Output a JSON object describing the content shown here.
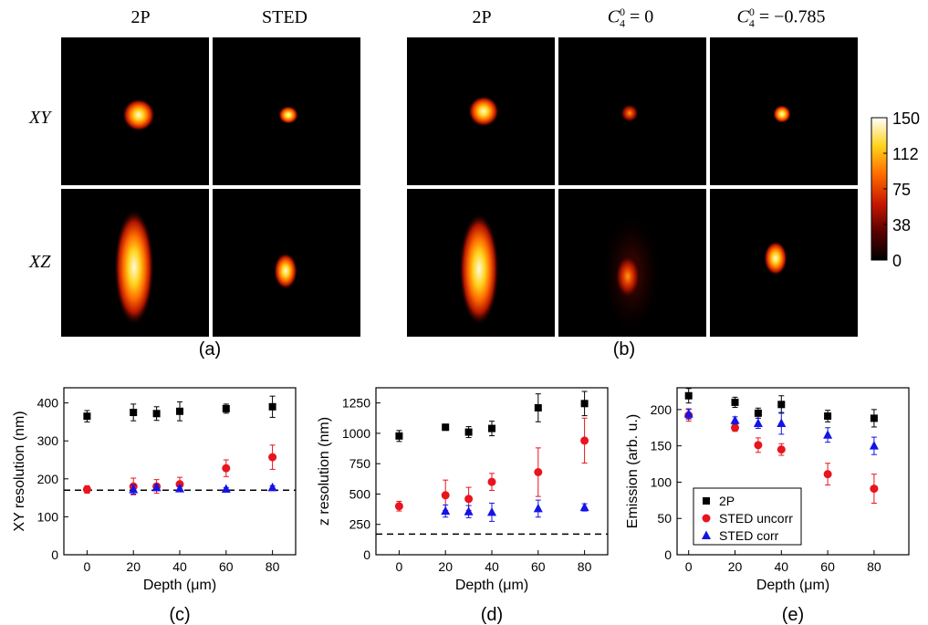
{
  "figure_a": {
    "col_headers": [
      "2P",
      "STED"
    ],
    "row_labels": [
      "XY",
      "XZ"
    ],
    "caption": "(a)"
  },
  "figure_b": {
    "col_headers": [
      "2P",
      "C_4^0 = 0",
      "C_4^0 = −0.785"
    ],
    "caption": "(b)"
  },
  "colorbar": {
    "ticks": [
      "150",
      "112",
      "75",
      "38",
      "0"
    ],
    "colormap": [
      "#000000",
      "#5a0000",
      "#c81800",
      "#ff6a00",
      "#ffd21a",
      "#ffffff"
    ]
  },
  "chart_data": [
    {
      "type": "scatter",
      "caption": "(c)",
      "xlabel": "Depth (μm)",
      "ylabel": "XY resolution (nm)",
      "xlim": [
        -10,
        90
      ],
      "ylim": [
        0,
        440
      ],
      "xticks": [
        0,
        20,
        40,
        60,
        80
      ],
      "yticks": [
        0,
        100,
        200,
        300,
        400
      ],
      "reference_line": 170,
      "series": [
        {
          "marker": "square",
          "color": "#000000",
          "x": [
            0,
            20,
            30,
            40,
            60,
            80
          ],
          "y": [
            365,
            375,
            372,
            378,
            385,
            390
          ],
          "err": [
            15,
            22,
            18,
            25,
            12,
            28
          ]
        },
        {
          "marker": "circle",
          "color": "#e8141e",
          "x": [
            0,
            20,
            30,
            40,
            60,
            80
          ],
          "y": [
            172,
            180,
            180,
            186,
            228,
            257
          ],
          "err": [
            10,
            22,
            18,
            18,
            22,
            32
          ]
        },
        {
          "marker": "triangle",
          "color": "#1414e6",
          "x": [
            20,
            30,
            40,
            60,
            80
          ],
          "y": [
            172,
            177,
            174,
            173,
            177
          ],
          "err": [
            12,
            8,
            8,
            4,
            5
          ]
        }
      ]
    },
    {
      "type": "scatter",
      "caption": "(d)",
      "xlabel": "Depth (μm)",
      "ylabel": "z resolution (nm)",
      "xlim": [
        -10,
        90
      ],
      "ylim": [
        0,
        1375
      ],
      "xticks": [
        0,
        20,
        40,
        60,
        80
      ],
      "yticks": [
        0,
        250,
        500,
        750,
        1000,
        1250
      ],
      "reference_line": 170,
      "series": [
        {
          "marker": "square",
          "color": "#000000",
          "x": [
            0,
            20,
            30,
            40,
            60,
            80
          ],
          "y": [
            978,
            1050,
            1010,
            1040,
            1210,
            1245
          ],
          "err": [
            45,
            25,
            45,
            60,
            115,
            100
          ]
        },
        {
          "marker": "circle",
          "color": "#e8141e",
          "x": [
            0,
            20,
            30,
            40,
            60,
            80
          ],
          "y": [
            400,
            490,
            460,
            600,
            680,
            940
          ],
          "err": [
            40,
            125,
            95,
            70,
            200,
            185
          ]
        },
        {
          "marker": "triangle",
          "color": "#1414e6",
          "x": [
            20,
            30,
            40,
            60,
            80
          ],
          "y": [
            360,
            355,
            350,
            380,
            390
          ],
          "err": [
            50,
            50,
            75,
            70,
            30
          ]
        }
      ]
    },
    {
      "type": "scatter",
      "caption": "(e)",
      "xlabel": "Depth (μm)",
      "ylabel": "Emission (arb. u.)",
      "xlim": [
        -5,
        95
      ],
      "ylim": [
        0,
        230
      ],
      "xticks": [
        0,
        20,
        40,
        60,
        80
      ],
      "yticks": [
        0,
        50,
        100,
        150,
        200
      ],
      "legend_position": "bottom-left",
      "series": [
        {
          "name": "2P",
          "marker": "square",
          "color": "#000000",
          "x": [
            0,
            20,
            30,
            40,
            60,
            80
          ],
          "y": [
            219,
            210,
            195,
            207,
            191,
            188
          ],
          "err": [
            10,
            7,
            7,
            12,
            8,
            12
          ]
        },
        {
          "name": "STED uncorr",
          "marker": "circle",
          "color": "#e8141e",
          "x": [
            0,
            20,
            30,
            40,
            60,
            80
          ],
          "y": [
            192,
            175,
            151,
            145,
            111,
            91
          ],
          "err": [
            8,
            5,
            10,
            8,
            15,
            20
          ]
        },
        {
          "name": "STED corr",
          "marker": "triangle",
          "color": "#1414e6",
          "x": [
            0,
            20,
            30,
            40,
            60,
            80
          ],
          "y": [
            194,
            185,
            181,
            181,
            165,
            150
          ],
          "err": [
            7,
            5,
            7,
            15,
            10,
            12
          ]
        }
      ]
    }
  ]
}
